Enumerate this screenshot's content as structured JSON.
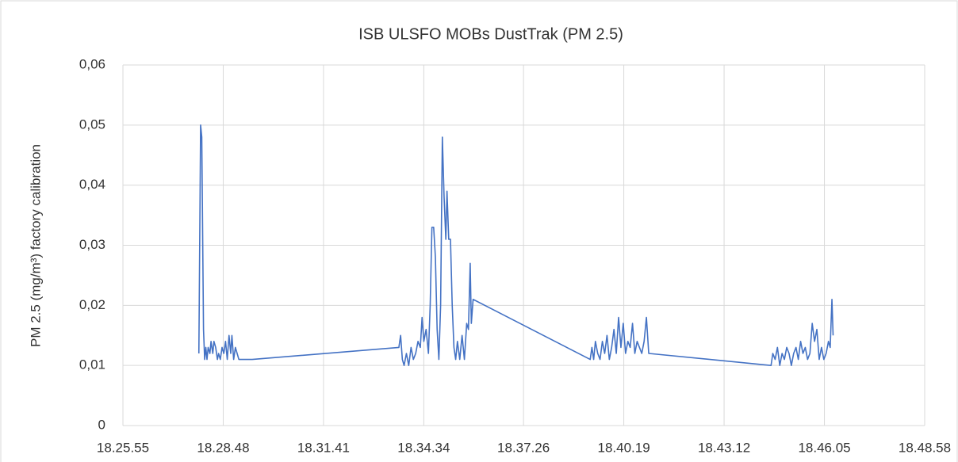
{
  "chart_data": {
    "type": "line",
    "title": "ISB ULSFO MOBs DustTrak (PM 2.5)",
    "y_label": "PM 2.5 (mg/m³) factory calibration",
    "xlim": [
      "18.25.55",
      "18.48.58"
    ],
    "xticks": [
      "18.25.55",
      "18.28.48",
      "18.31.41",
      "18.34.34",
      "18.37.26",
      "18.40.19",
      "18.43.12",
      "18.46.05",
      "18.48.58"
    ],
    "ylim": [
      0,
      0.06
    ],
    "yticks": [
      0,
      {
        "value": 0.01,
        "label": "0,01"
      },
      {
        "value": 0.02,
        "label": "0,02"
      },
      {
        "value": 0.03,
        "label": "0,03"
      },
      {
        "value": 0.04,
        "label": "0,04"
      },
      {
        "value": 0.05,
        "label": "0,05"
      },
      {
        "value": 0.06,
        "label": "0,06"
      }
    ],
    "grid": true,
    "series": [
      {
        "color": "#4472c4",
        "x": [
          "18.28.06",
          "18.28.09",
          "18.28.11",
          "18.28.14",
          "18.28.16",
          "18.28.18",
          "18.28.20",
          "18.28.22",
          "18.28.25",
          "18.28.27",
          "18.28.30",
          "18.28.32",
          "18.28.35",
          "18.28.38",
          "18.28.40",
          "18.28.43",
          "18.28.46",
          "18.28.49",
          "18.28.52",
          "18.28.55",
          "18.28.58",
          "18.29.01",
          "18.29.03",
          "18.29.06",
          "18.29.09",
          "18.29.12",
          "18.29.15",
          "18.29.38",
          "18.33.51",
          "18.33.54",
          "18.33.57",
          "18.34.00",
          "18.34.04",
          "18.34.08",
          "18.34.12",
          "18.34.16",
          "18.34.20",
          "18.34.24",
          "18.34.28",
          "18.34.31",
          "18.34.34",
          "18.34.38",
          "18.34.42",
          "18.34.45",
          "18.34.48",
          "18.34.51",
          "18.34.54",
          "18.34.57",
          "18.35.00",
          "18.35.03",
          "18.35.06",
          "18.35.09",
          "18.35.12",
          "18.35.14",
          "18.35.17",
          "18.35.20",
          "18.35.23",
          "18.35.26",
          "18.35.29",
          "18.35.32",
          "18.35.36",
          "18.35.40",
          "18.35.44",
          "18.35.48",
          "18.35.51",
          "18.35.54",
          "18.35.56",
          "18.35.59",
          "18.39.21",
          "18.39.24",
          "18.39.27",
          "18.39.30",
          "18.39.34",
          "18.39.38",
          "18.39.42",
          "18.39.46",
          "18.39.50",
          "18.39.54",
          "18.39.58",
          "18.40.02",
          "18.40.06",
          "18.40.10",
          "18.40.14",
          "18.40.18",
          "18.40.22",
          "18.40.26",
          "18.40.30",
          "18.40.34",
          "18.40.38",
          "18.40.42",
          "18.40.46",
          "18.40.50",
          "18.40.54",
          "18.40.58",
          "18.41.02",
          "18.44.33",
          "18.44.36",
          "18.44.40",
          "18.44.44",
          "18.44.48",
          "18.44.52",
          "18.44.56",
          "18.45.00",
          "18.45.04",
          "18.45.08",
          "18.45.12",
          "18.45.16",
          "18.45.20",
          "18.45.24",
          "18.45.28",
          "18.45.32",
          "18.45.36",
          "18.45.40",
          "18.45.44",
          "18.45.48",
          "18.45.52",
          "18.45.56",
          "18.46.00",
          "18.46.04",
          "18.46.08",
          "18.46.12",
          "18.46.15",
          "18.46.18",
          "18.46.20"
        ],
        "values": [
          0.012,
          0.05,
          0.048,
          0.016,
          0.011,
          0.013,
          0.011,
          0.013,
          0.012,
          0.014,
          0.012,
          0.014,
          0.013,
          0.011,
          0.012,
          0.011,
          0.013,
          0.012,
          0.014,
          0.011,
          0.015,
          0.012,
          0.015,
          0.011,
          0.013,
          0.012,
          0.011,
          0.011,
          0.013,
          0.015,
          0.011,
          0.01,
          0.012,
          0.01,
          0.013,
          0.011,
          0.012,
          0.014,
          0.013,
          0.018,
          0.014,
          0.016,
          0.012,
          0.02,
          0.033,
          0.033,
          0.028,
          0.016,
          0.011,
          0.02,
          0.048,
          0.038,
          0.031,
          0.039,
          0.031,
          0.031,
          0.02,
          0.013,
          0.011,
          0.014,
          0.011,
          0.015,
          0.011,
          0.017,
          0.016,
          0.027,
          0.017,
          0.021,
          0.011,
          0.013,
          0.011,
          0.014,
          0.012,
          0.011,
          0.014,
          0.012,
          0.015,
          0.011,
          0.013,
          0.016,
          0.012,
          0.018,
          0.013,
          0.017,
          0.012,
          0.014,
          0.013,
          0.017,
          0.012,
          0.014,
          0.013,
          0.012,
          0.014,
          0.018,
          0.012,
          0.01,
          0.012,
          0.011,
          0.013,
          0.01,
          0.012,
          0.011,
          0.013,
          0.012,
          0.01,
          0.012,
          0.013,
          0.011,
          0.014,
          0.012,
          0.013,
          0.011,
          0.012,
          0.017,
          0.014,
          0.016,
          0.011,
          0.013,
          0.011,
          0.012,
          0.014,
          0.013,
          0.021,
          0.015
        ]
      }
    ]
  }
}
